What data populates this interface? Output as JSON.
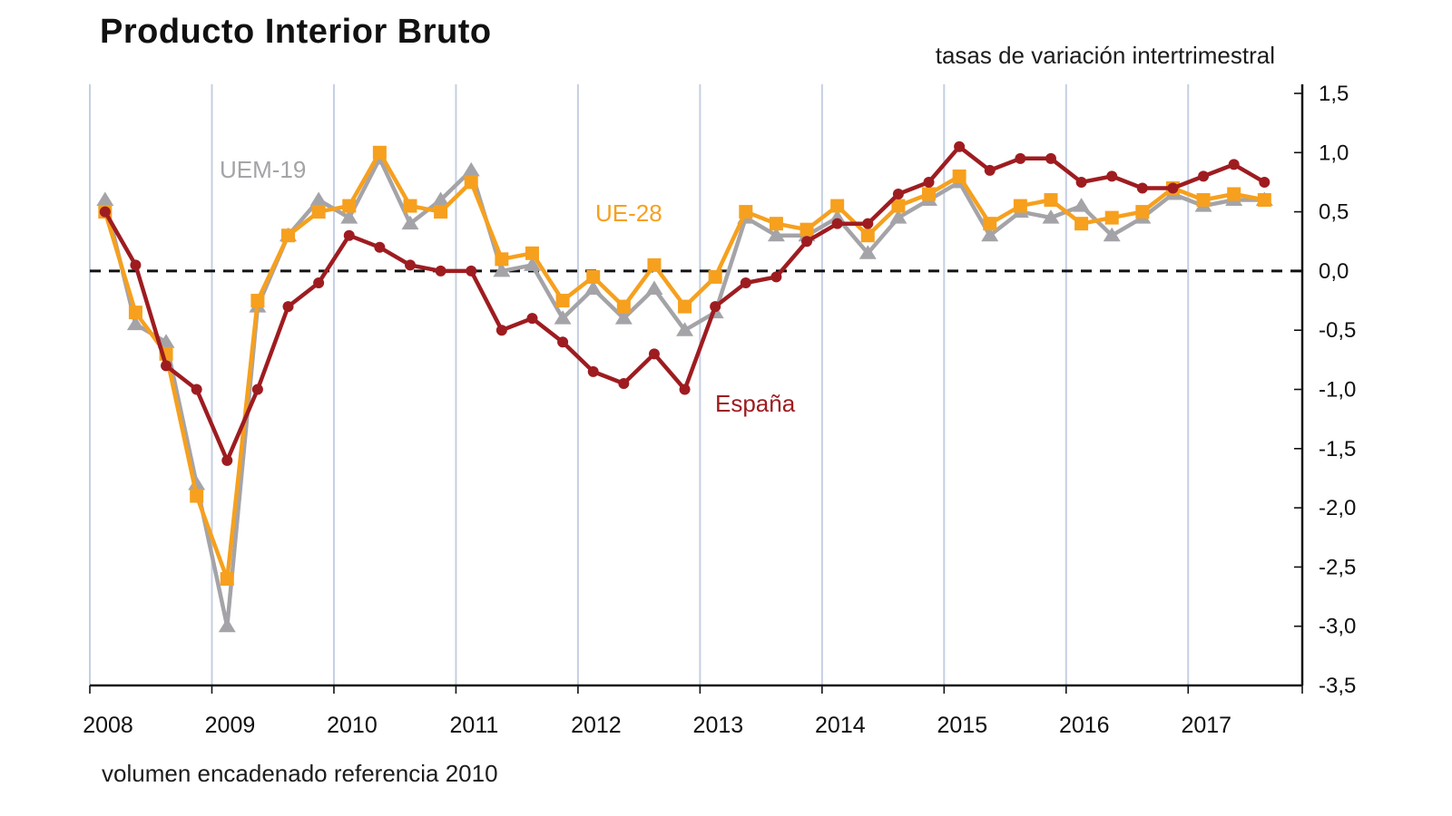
{
  "header": {
    "title": "Producto Interior Bruto",
    "subtitle": "tasas de variación intertrimestral",
    "footnote": "volumen encadenado referencia 2010"
  },
  "chart_data": {
    "type": "line",
    "title": "Producto Interior Bruto",
    "subtitle": "tasas de variación intertrimestral",
    "footnote": "volumen encadenado referencia 2010",
    "x_tick_labels": [
      "2008",
      "2009",
      "2010",
      "2011",
      "2012",
      "2013",
      "2014",
      "2015",
      "2016",
      "2017"
    ],
    "y_ticks": [
      1.5,
      1.0,
      0.5,
      0.0,
      -0.5,
      -1.0,
      -1.5,
      -2.0,
      -2.5,
      -3.0,
      -3.5
    ],
    "ylim": [
      -3.5,
      1.5
    ],
    "zero_line": "dashed",
    "grid": "vertical-yearly",
    "legend_position": "inline-annotations",
    "categories": [
      "2008Q1",
      "2008Q2",
      "2008Q3",
      "2008Q4",
      "2009Q1",
      "2009Q2",
      "2009Q3",
      "2009Q4",
      "2010Q1",
      "2010Q2",
      "2010Q3",
      "2010Q4",
      "2011Q1",
      "2011Q2",
      "2011Q3",
      "2011Q4",
      "2012Q1",
      "2012Q2",
      "2012Q3",
      "2012Q4",
      "2013Q1",
      "2013Q2",
      "2013Q3",
      "2013Q4",
      "2014Q1",
      "2014Q2",
      "2014Q3",
      "2014Q4",
      "2015Q1",
      "2015Q2",
      "2015Q3",
      "2015Q4",
      "2016Q1",
      "2016Q2",
      "2016Q3",
      "2016Q4",
      "2017Q1",
      "2017Q2",
      "2017Q3"
    ],
    "series": [
      {
        "name": "UEM-19",
        "color": "#a4a4a8",
        "marker": "triangle",
        "values": [
          0.6,
          -0.45,
          -0.6,
          -1.8,
          -3.0,
          -0.3,
          0.3,
          0.6,
          0.45,
          0.95,
          0.4,
          0.6,
          0.85,
          0.0,
          0.05,
          -0.4,
          -0.15,
          -0.4,
          -0.15,
          -0.5,
          -0.35,
          0.45,
          0.3,
          0.3,
          0.45,
          0.15,
          0.45,
          0.6,
          0.75,
          0.3,
          0.5,
          0.45,
          0.55,
          0.3,
          0.45,
          0.65,
          0.55,
          0.6,
          0.6
        ]
      },
      {
        "name": "UE-28",
        "color": "#f6a01e",
        "marker": "square",
        "values": [
          0.5,
          -0.35,
          -0.7,
          -1.9,
          -2.6,
          -0.25,
          0.3,
          0.5,
          0.55,
          1.0,
          0.55,
          0.5,
          0.75,
          0.1,
          0.15,
          -0.25,
          -0.05,
          -0.3,
          0.05,
          -0.3,
          -0.05,
          0.5,
          0.4,
          0.35,
          0.55,
          0.3,
          0.55,
          0.65,
          0.8,
          0.4,
          0.55,
          0.6,
          0.4,
          0.45,
          0.5,
          0.7,
          0.6,
          0.65,
          0.6
        ]
      },
      {
        "name": "España",
        "color": "#9e1c20",
        "marker": "circle",
        "values": [
          0.5,
          0.05,
          -0.8,
          -1.0,
          -1.6,
          -1.0,
          -0.3,
          -0.1,
          0.3,
          0.2,
          0.05,
          0.0,
          0.0,
          -0.5,
          -0.4,
          -0.6,
          -0.85,
          -0.95,
          -0.7,
          -1.0,
          -0.3,
          -0.1,
          -0.05,
          0.25,
          0.4,
          0.4,
          0.65,
          0.75,
          1.05,
          0.85,
          0.95,
          0.95,
          0.75,
          0.8,
          0.7,
          0.7,
          0.8,
          0.9,
          0.75
        ]
      }
    ],
    "annotations": [
      {
        "text": "UEM-19",
        "series": "UEM-19"
      },
      {
        "text": "UE-28",
        "series": "UE-28"
      },
      {
        "text": "España",
        "series": "España"
      }
    ],
    "colors": {
      "grid": "#c4cfe2",
      "axis": "#111111",
      "zero_line": "#111111",
      "tick_text": "#111111"
    }
  }
}
